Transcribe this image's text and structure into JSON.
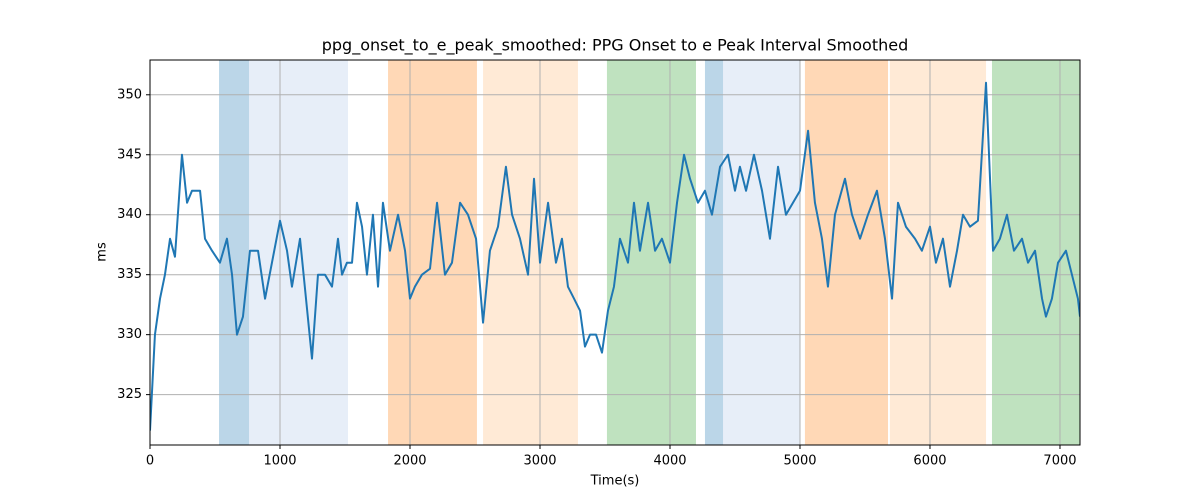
{
  "chart_data": {
    "type": "line",
    "title": "ppg_onset_to_e_peak_smoothed: PPG Onset to e Peak Interval Smoothed",
    "x_label": "Time(s)",
    "y_label": "ms",
    "color": "#1f77b4",
    "grid": true,
    "xlim": [
      0,
      7154
    ],
    "ylim": [
      320.8,
      352.9
    ],
    "xticks": [
      0,
      1000,
      2000,
      3000,
      4000,
      5000,
      6000,
      7000
    ],
    "yticks": [
      325,
      330,
      335,
      340,
      345,
      350
    ],
    "spans": [
      {
        "start": 531,
        "end": 762,
        "color": "#1f77b4"
      },
      {
        "start": 762,
        "end": 1523,
        "color": "#aec7e8"
      },
      {
        "start": 1831,
        "end": 2515,
        "color": "#ff7f0e"
      },
      {
        "start": 2562,
        "end": 3292,
        "color": "#ffbb78"
      },
      {
        "start": 3515,
        "end": 4200,
        "color": "#2ca02c"
      },
      {
        "start": 4269,
        "end": 4408,
        "color": "#1f77b4"
      },
      {
        "start": 4408,
        "end": 5000,
        "color": "#aec7e8"
      },
      {
        "start": 5038,
        "end": 5677,
        "color": "#ff7f0e"
      },
      {
        "start": 5692,
        "end": 6431,
        "color": "#ffbb78"
      },
      {
        "start": 6477,
        "end": 7154,
        "color": "#2ca02c"
      }
    ],
    "x": [
      0,
      38,
      77,
      115,
      154,
      192,
      246,
      285,
      323,
      385,
      423,
      477,
      538,
      592,
      631,
      669,
      715,
      769,
      831,
      885,
      938,
      1000,
      1054,
      1092,
      1154,
      1200,
      1246,
      1292,
      1346,
      1400,
      1446,
      1477,
      1515,
      1554,
      1592,
      1631,
      1669,
      1715,
      1754,
      1792,
      1846,
      1908,
      1962,
      2000,
      2038,
      2092,
      2154,
      2208,
      2269,
      2323,
      2385,
      2446,
      2508,
      2562,
      2615,
      2677,
      2738,
      2785,
      2846,
      2908,
      2954,
      3000,
      3062,
      3123,
      3169,
      3215,
      3262,
      3308,
      3346,
      3385,
      3431,
      3477,
      3523,
      3569,
      3615,
      3677,
      3723,
      3769,
      3831,
      3885,
      3938,
      4000,
      4054,
      4108,
      4154,
      4215,
      4269,
      4323,
      4385,
      4446,
      4500,
      4538,
      4585,
      4646,
      4708,
      4769,
      4831,
      4892,
      4946,
      5000,
      5062,
      5115,
      5169,
      5215,
      5269,
      5346,
      5400,
      5462,
      5523,
      5592,
      5654,
      5708,
      5754,
      5815,
      5885,
      5938,
      6000,
      6046,
      6100,
      6154,
      6208,
      6254,
      6308,
      6369,
      6431,
      6485,
      6538,
      6592,
      6646,
      6708,
      6754,
      6808,
      6862,
      6892,
      6938,
      6985,
      7046,
      7092,
      7138,
      7154
    ],
    "values": [
      322,
      330,
      333,
      335,
      338,
      336.5,
      345,
      341,
      342,
      342,
      338,
      337,
      336,
      338,
      335,
      330,
      331.5,
      337,
      337,
      333,
      336,
      339.5,
      337,
      334,
      338,
      333,
      328,
      335,
      335,
      334,
      338,
      335,
      336,
      336,
      341,
      339,
      335,
      340,
      334,
      341,
      337,
      340,
      337,
      333,
      334,
      335,
      335.5,
      341,
      335,
      336,
      341,
      340,
      338,
      331,
      337,
      339,
      344,
      340,
      338,
      335,
      343,
      336,
      341,
      336,
      338,
      334,
      333,
      332,
      329,
      330,
      330,
      328.5,
      332,
      334,
      338,
      336,
      341,
      337,
      341,
      337,
      338,
      336,
      341,
      345,
      343,
      341,
      342,
      340,
      344,
      345,
      342,
      344,
      342,
      345,
      342,
      338,
      344,
      340,
      341,
      342,
      347,
      341,
      338,
      334,
      340,
      343,
      340,
      338,
      340,
      342,
      338,
      333,
      341,
      339,
      338,
      337,
      339,
      336,
      338,
      334,
      337,
      340,
      339,
      339.5,
      351,
      337,
      338,
      340,
      337,
      338,
      336,
      337,
      333,
      331.5,
      333,
      336,
      337,
      335,
      333,
      331.5
    ]
  }
}
